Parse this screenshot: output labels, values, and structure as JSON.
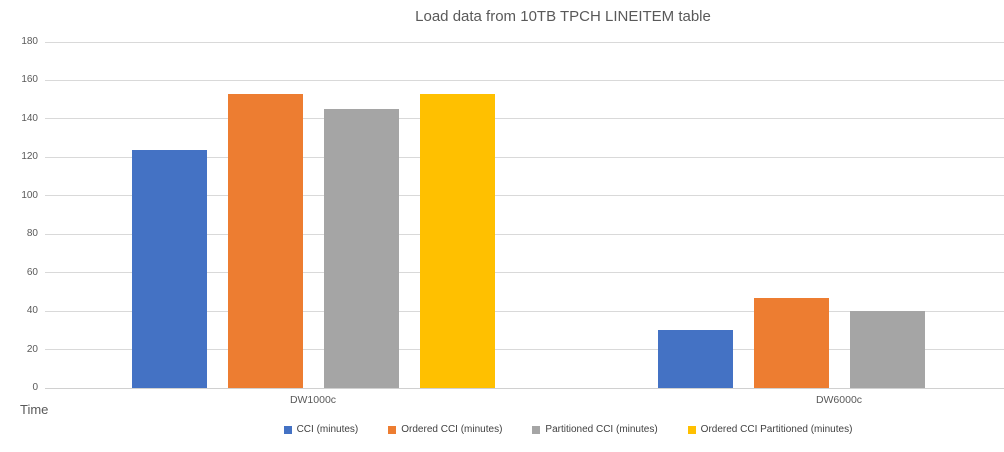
{
  "chart_data": {
    "type": "bar",
    "title": "Load data from 10TB TPCH LINEITEM table",
    "ylabel": "Time",
    "xlabel": "",
    "categories": [
      "DW1000c",
      "DW6000c"
    ],
    "series": [
      {
        "name": "CCI (minutes)",
        "color": "#4472C4",
        "values": [
          124,
          30
        ]
      },
      {
        "name": "Ordered CCI (minutes)",
        "color": "#ED7D31",
        "values": [
          153,
          47
        ]
      },
      {
        "name": "Partitioned CCI (minutes)",
        "color": "#A5A5A5",
        "values": [
          145,
          40
        ]
      },
      {
        "name": "Ordered CCI Partitioned (minutes)",
        "color": "#FFC000",
        "values": [
          153,
          null
        ]
      }
    ],
    "ylim": [
      0,
      180
    ],
    "ytick_step": 20,
    "grid": true,
    "legend_position": "bottom",
    "colors": {
      "grid": "#d9d9d9",
      "axis_text": "#595959",
      "title_text": "#595959",
      "legend_text": "#404040",
      "background": "#ffffff"
    }
  }
}
